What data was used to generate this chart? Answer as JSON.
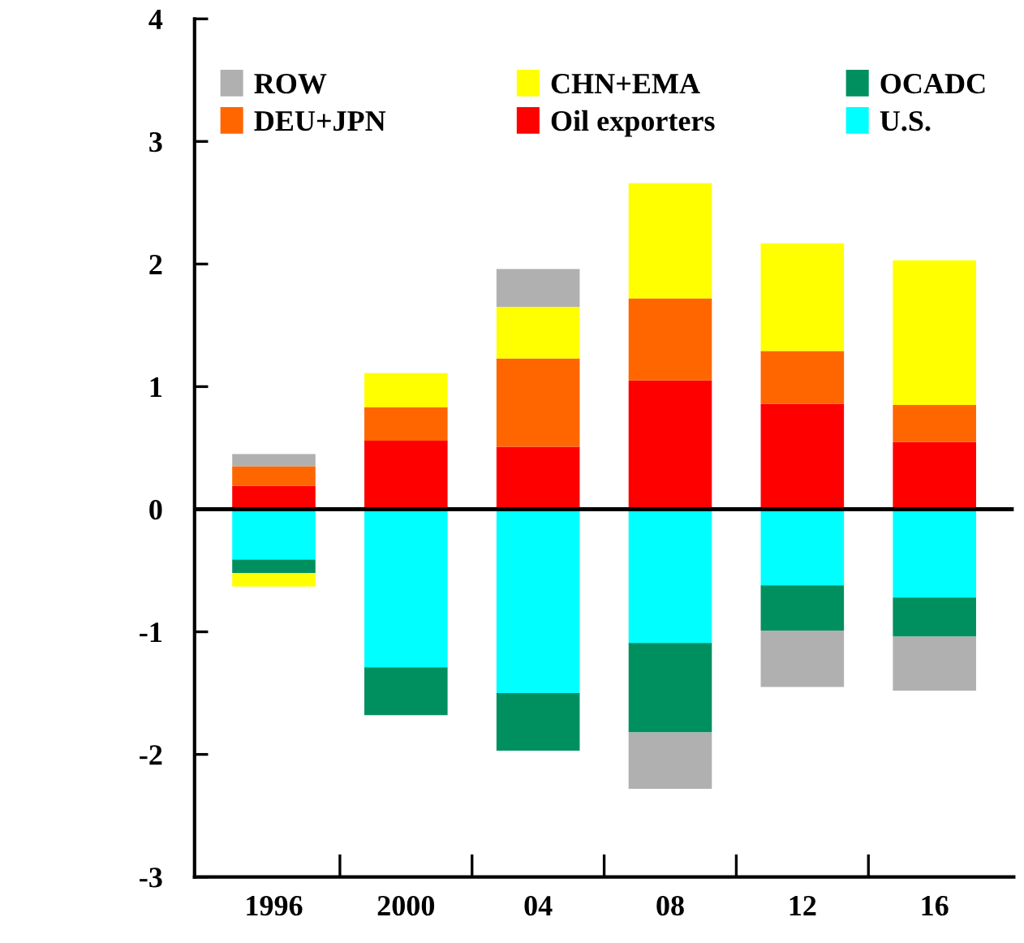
{
  "chart_data": {
    "type": "bar",
    "stacked": true,
    "categories": [
      "1996",
      "2000",
      "04",
      "08",
      "12",
      "16"
    ],
    "series": [
      {
        "name": "U.S.",
        "color": "#00ffff",
        "values": [
          -0.41,
          -1.29,
          -1.5,
          -1.09,
          -0.62,
          -0.72
        ]
      },
      {
        "name": "Oil exporters",
        "color": "#ff0000",
        "values": [
          0.19,
          0.56,
          0.51,
          1.05,
          0.86,
          0.55
        ]
      },
      {
        "name": "DEU+JPN",
        "color": "#ff6600",
        "values": [
          0.16,
          0.27,
          0.72,
          0.67,
          0.43,
          0.3
        ]
      },
      {
        "name": "OCADC",
        "color": "#009060",
        "values": [
          -0.11,
          -0.39,
          -0.47,
          -0.73,
          -0.37,
          -0.32
        ]
      },
      {
        "name": "CHN+EMA",
        "color": "#ffff00",
        "values": [
          -0.11,
          0.28,
          0.42,
          0.94,
          0.88,
          1.18
        ]
      },
      {
        "name": "ROW",
        "color": "#b0b0b0",
        "values": [
          0.1,
          null,
          0.31,
          -0.46,
          -0.46,
          -0.44
        ]
      }
    ],
    "ylim": [
      -3,
      4
    ],
    "yticks": [
      -3,
      -2,
      -1,
      0,
      1,
      2,
      3,
      4
    ],
    "ref_lines": [
      {
        "axis": "y",
        "value": 0,
        "color": "#000000"
      }
    ],
    "legend": "top"
  }
}
